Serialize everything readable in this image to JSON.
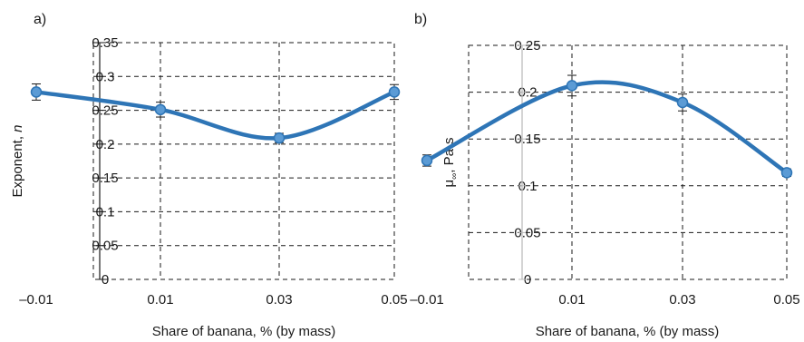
{
  "chart_data": [
    {
      "type": "line",
      "panel_label": "a)",
      "xlabel": "Share of banana, % (by mass)",
      "ylabel_main": "Exponent, ",
      "ylabel_var": "n",
      "x_tick_labels": [
        "–0.01",
        "0.01",
        "0.03",
        "0.05"
      ],
      "y_tick_labels": [
        "0",
        "0.05",
        "0.1",
        "0.15",
        "0.2",
        "0.25",
        "0.3",
        "0.35"
      ],
      "ylim": [
        0,
        0.35
      ],
      "grid": true,
      "smooth": true,
      "color": "#2e75b6",
      "marker_color": "#5b9bd5",
      "series": [
        {
          "x_ticks": [
            0,
            1,
            2,
            3
          ],
          "values": [
            0.277,
            0.251,
            0.209,
            0.277
          ],
          "errors": [
            0.012,
            0.011,
            0.007,
            0.011
          ]
        }
      ]
    },
    {
      "type": "line",
      "panel_label": "b)",
      "xlabel": "Share of banana, % (by mass)",
      "ylabel_main": "μ",
      "ylabel_sub": "∞",
      "ylabel_rest": ", Pa·s",
      "x_tick_labels": [
        "–0.01",
        "0.01",
        "0.03",
        "0.05"
      ],
      "y_tick_labels": [
        "0",
        "0.05",
        "0.1",
        "0.15",
        "0.2",
        "0.25"
      ],
      "ylim": [
        0,
        0.25
      ],
      "grid": true,
      "smooth": true,
      "color": "#2e75b6",
      "marker_color": "#5b9bd5",
      "series": [
        {
          "x_ticks": [
            0,
            1,
            2,
            3
          ],
          "values": [
            0.127,
            0.207,
            0.189,
            0.114
          ],
          "errors": [
            0.006,
            0.011,
            0.009,
            0.004
          ]
        }
      ]
    }
  ]
}
